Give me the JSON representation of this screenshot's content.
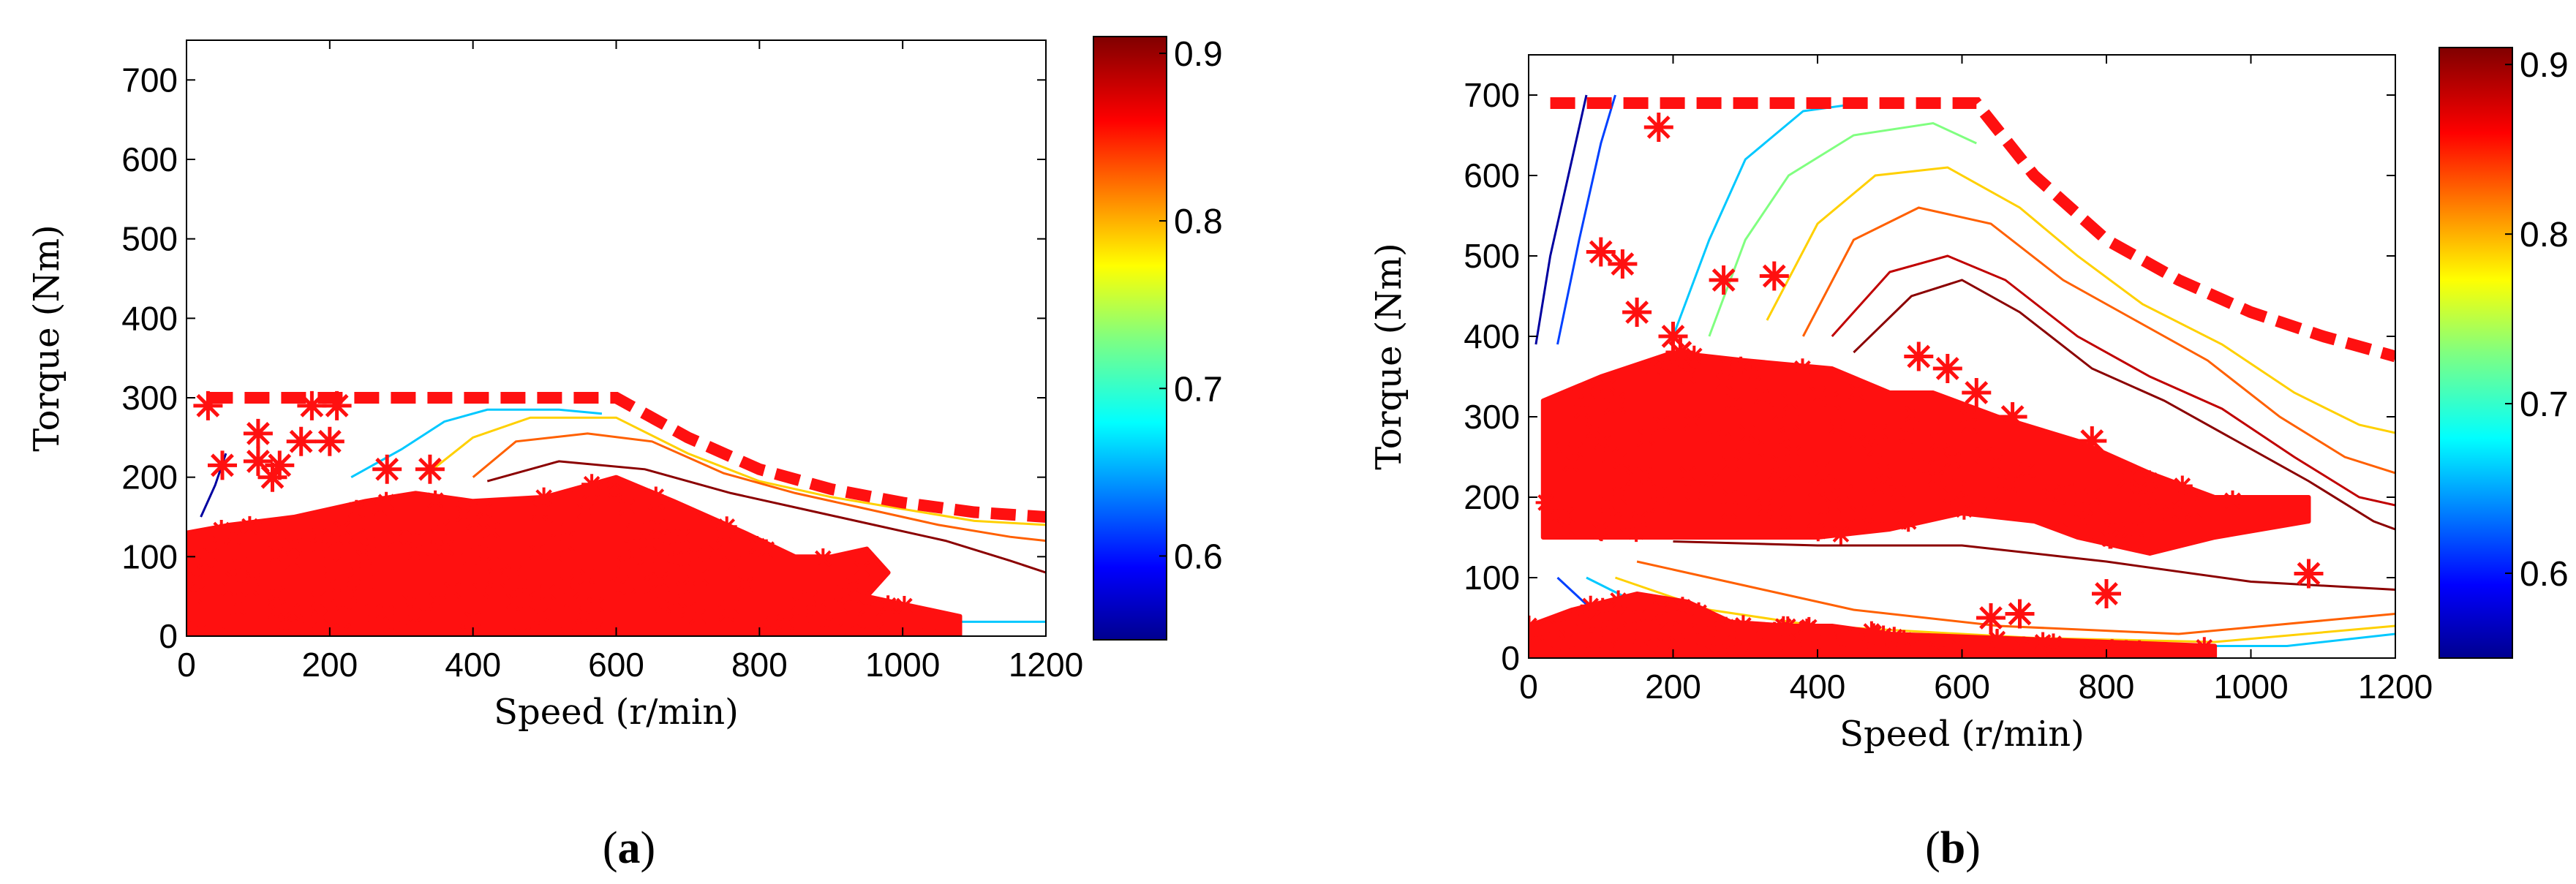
{
  "panels": [
    {
      "label_open": "(",
      "label_letter": "a",
      "label_close": ")",
      "xlabel": "Speed (r/min)",
      "ylabel": "Torque (Nm)",
      "xlim": [
        0,
        1200
      ],
      "ylim": [
        0,
        750
      ],
      "xticks": [
        "0",
        "200",
        "400",
        "600",
        "800",
        "1000",
        "1200"
      ],
      "yticks": [
        "0",
        "100",
        "200",
        "300",
        "400",
        "500",
        "600",
        "700"
      ],
      "colorbar_ticks": [
        "0.9",
        "0.8",
        "0.7",
        "0.6"
      ],
      "colorbar_range": [
        0.55,
        0.91
      ],
      "max_torque_boundary": [
        [
          30,
          300
        ],
        [
          600,
          300
        ],
        [
          700,
          250
        ],
        [
          800,
          210
        ],
        [
          900,
          185
        ],
        [
          1000,
          168
        ],
        [
          1100,
          156
        ],
        [
          1200,
          150
        ]
      ],
      "contour_lines": [
        {
          "color": "#0000a0",
          "points": [
            [
              20,
              150
            ],
            [
              40,
              190
            ],
            [
              55,
              230
            ]
          ]
        },
        {
          "color": "#00c8ff",
          "points": [
            [
              230,
              200
            ],
            [
              300,
              235
            ],
            [
              360,
              270
            ],
            [
              420,
              285
            ],
            [
              520,
              285
            ],
            [
              580,
              280
            ]
          ]
        },
        {
          "color": "#ffd000",
          "points": [
            [
              330,
              200
            ],
            [
              400,
              250
            ],
            [
              480,
              275
            ],
            [
              600,
              275
            ],
            [
              700,
              230
            ],
            [
              800,
              195
            ],
            [
              900,
              175
            ],
            [
              1000,
              160
            ],
            [
              1100,
              145
            ],
            [
              1200,
              140
            ]
          ]
        },
        {
          "color": "#ff6000",
          "points": [
            [
              400,
              200
            ],
            [
              460,
              245
            ],
            [
              560,
              255
            ],
            [
              650,
              245
            ],
            [
              750,
              205
            ],
            [
              850,
              180
            ],
            [
              950,
              160
            ],
            [
              1050,
              140
            ],
            [
              1150,
              125
            ],
            [
              1200,
              120
            ]
          ]
        },
        {
          "color": "#8b0000",
          "points": [
            [
              420,
              195
            ],
            [
              520,
              220
            ],
            [
              640,
              210
            ],
            [
              760,
              180
            ],
            [
              860,
              160
            ],
            [
              960,
              140
            ],
            [
              1060,
              120
            ],
            [
              1150,
              95
            ],
            [
              1200,
              80
            ]
          ]
        },
        {
          "color": "#00c8ff",
          "points": [
            [
              1080,
              18
            ],
            [
              1200,
              18
            ]
          ]
        }
      ],
      "operating_points_region": [
        [
          0,
          0
        ],
        [
          0,
          130
        ],
        [
          60,
          140
        ],
        [
          150,
          150
        ],
        [
          250,
          170
        ],
        [
          320,
          180
        ],
        [
          400,
          170
        ],
        [
          500,
          175
        ],
        [
          600,
          200
        ],
        [
          680,
          170
        ],
        [
          780,
          130
        ],
        [
          850,
          100
        ],
        [
          900,
          100
        ],
        [
          950,
          110
        ],
        [
          980,
          80
        ],
        [
          950,
          50
        ],
        [
          1080,
          25
        ],
        [
          1080,
          0
        ]
      ],
      "star_points": [
        [
          50,
          215
        ],
        [
          100,
          255
        ],
        [
          130,
          215
        ],
        [
          160,
          245
        ],
        [
          175,
          290
        ],
        [
          200,
          245
        ],
        [
          210,
          290
        ],
        [
          280,
          210
        ],
        [
          340,
          210
        ],
        [
          30,
          290
        ],
        [
          100,
          220
        ],
        [
          120,
          200
        ]
      ]
    },
    {
      "label_open": "(",
      "label_letter": "b",
      "label_close": ")",
      "xlabel": "Speed (r/min)",
      "ylabel": "Torque (Nm)",
      "xlim": [
        0,
        1200
      ],
      "ylim": [
        0,
        750
      ],
      "xticks": [
        "0",
        "200",
        "400",
        "600",
        "800",
        "1000",
        "1200"
      ],
      "yticks": [
        "0",
        "100",
        "200",
        "300",
        "400",
        "500",
        "600",
        "700"
      ],
      "colorbar_ticks": [
        "0.9",
        "0.8",
        "0.7",
        "0.6"
      ],
      "colorbar_range": [
        0.55,
        0.91
      ],
      "max_torque_boundary": [
        [
          30,
          690
        ],
        [
          620,
          690
        ],
        [
          700,
          600
        ],
        [
          800,
          520
        ],
        [
          900,
          470
        ],
        [
          1000,
          430
        ],
        [
          1100,
          400
        ],
        [
          1200,
          375
        ]
      ],
      "contour_lines": [
        {
          "color": "#0000a0",
          "points": [
            [
              10,
              390
            ],
            [
              30,
              500
            ],
            [
              60,
              620
            ],
            [
              80,
              700
            ]
          ]
        },
        {
          "color": "#0040ff",
          "points": [
            [
              40,
              390
            ],
            [
              70,
              520
            ],
            [
              100,
              640
            ],
            [
              120,
              700
            ]
          ]
        },
        {
          "color": "#00c8ff",
          "points": [
            [
              200,
              400
            ],
            [
              250,
              520
            ],
            [
              300,
              620
            ],
            [
              380,
              680
            ],
            [
              460,
              690
            ]
          ]
        },
        {
          "color": "#80ff80",
          "points": [
            [
              250,
              400
            ],
            [
              300,
              520
            ],
            [
              360,
              600
            ],
            [
              450,
              650
            ],
            [
              560,
              665
            ],
            [
              620,
              640
            ]
          ]
        },
        {
          "color": "#ffd000",
          "points": [
            [
              330,
              420
            ],
            [
              400,
              540
            ],
            [
              480,
              600
            ],
            [
              580,
              610
            ],
            [
              680,
              560
            ],
            [
              760,
              500
            ],
            [
              850,
              440
            ],
            [
              960,
              390
            ],
            [
              1060,
              330
            ],
            [
              1150,
              290
            ],
            [
              1200,
              280
            ]
          ]
        },
        {
          "color": "#ff6000",
          "points": [
            [
              380,
              400
            ],
            [
              450,
              520
            ],
            [
              540,
              560
            ],
            [
              640,
              540
            ],
            [
              740,
              470
            ],
            [
              840,
              420
            ],
            [
              940,
              370
            ],
            [
              1040,
              300
            ],
            [
              1130,
              250
            ],
            [
              1200,
              230
            ]
          ]
        },
        {
          "color": "#c00000",
          "points": [
            [
              420,
              400
            ],
            [
              500,
              480
            ],
            [
              580,
              500
            ],
            [
              660,
              470
            ],
            [
              760,
              400
            ],
            [
              860,
              350
            ],
            [
              960,
              310
            ],
            [
              1060,
              250
            ],
            [
              1150,
              200
            ],
            [
              1200,
              190
            ]
          ]
        },
        {
          "color": "#8b0000",
          "points": [
            [
              450,
              380
            ],
            [
              530,
              450
            ],
            [
              600,
              470
            ],
            [
              680,
              430
            ],
            [
              780,
              360
            ],
            [
              880,
              320
            ],
            [
              980,
              270
            ],
            [
              1080,
              220
            ],
            [
              1170,
              170
            ],
            [
              1200,
              160
            ]
          ]
        },
        {
          "color": "#8b0000",
          "points": [
            [
              200,
              145
            ],
            [
              400,
              140
            ],
            [
              600,
              140
            ],
            [
              800,
              120
            ],
            [
              1000,
              95
            ],
            [
              1200,
              85
            ]
          ]
        },
        {
          "color": "#ff6000",
          "points": [
            [
              150,
              120
            ],
            [
              300,
              90
            ],
            [
              450,
              60
            ],
            [
              650,
              40
            ],
            [
              900,
              30
            ],
            [
              1200,
              55
            ]
          ]
        },
        {
          "color": "#ffd000",
          "points": [
            [
              120,
              100
            ],
            [
              250,
              60
            ],
            [
              400,
              40
            ],
            [
              700,
              25
            ],
            [
              950,
              20
            ],
            [
              1200,
              40
            ]
          ]
        },
        {
          "color": "#00c8ff",
          "points": [
            [
              80,
              100
            ],
            [
              180,
              55
            ],
            [
              350,
              30
            ],
            [
              800,
              15
            ],
            [
              1050,
              15
            ],
            [
              1200,
              30
            ]
          ]
        },
        {
          "color": "#0040ff",
          "points": [
            [
              40,
              100
            ],
            [
              100,
              50
            ],
            [
              200,
              25
            ]
          ]
        }
      ],
      "operating_points_region": [
        [
          20,
          150
        ],
        [
          20,
          320
        ],
        [
          100,
          350
        ],
        [
          200,
          380
        ],
        [
          300,
          370
        ],
        [
          420,
          360
        ],
        [
          500,
          330
        ],
        [
          560,
          330
        ],
        [
          650,
          300
        ],
        [
          760,
          270
        ],
        [
          860,
          230
        ],
        [
          950,
          200
        ],
        [
          1080,
          200
        ],
        [
          1080,
          170
        ],
        [
          950,
          150
        ],
        [
          860,
          130
        ],
        [
          760,
          150
        ],
        [
          700,
          170
        ],
        [
          600,
          180
        ],
        [
          500,
          160
        ],
        [
          400,
          150
        ],
        [
          300,
          150
        ],
        [
          200,
          150
        ]
      ],
      "low_points_region": [
        [
          0,
          0
        ],
        [
          0,
          40
        ],
        [
          60,
          60
        ],
        [
          150,
          80
        ],
        [
          220,
          70
        ],
        [
          280,
          45
        ],
        [
          360,
          40
        ],
        [
          420,
          40
        ],
        [
          500,
          30
        ],
        [
          950,
          15
        ],
        [
          950,
          0
        ]
      ],
      "star_points": [
        [
          100,
          505
        ],
        [
          130,
          490
        ],
        [
          150,
          430
        ],
        [
          180,
          660
        ],
        [
          270,
          470
        ],
        [
          340,
          475
        ],
        [
          540,
          375
        ],
        [
          580,
          360
        ],
        [
          620,
          330
        ],
        [
          670,
          300
        ],
        [
          780,
          270
        ],
        [
          830,
          225
        ],
        [
          800,
          80
        ],
        [
          1080,
          105
        ],
        [
          640,
          50
        ],
        [
          680,
          55
        ],
        [
          200,
          400
        ],
        [
          210,
          380
        ]
      ]
    }
  ]
}
